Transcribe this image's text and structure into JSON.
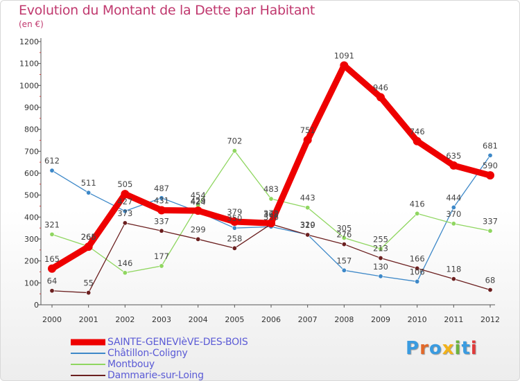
{
  "title": "Evolution du Montant de la Dette par Habitant",
  "subtitle": "(en €)",
  "logo": {
    "text": "Proxiti",
    "colors": [
      "#3a9be0",
      "#e2692a",
      "#3a9be0",
      "#f2b21a",
      "#6cb33f",
      "#3a9be0",
      "#e03a3a"
    ]
  },
  "chart_data": {
    "type": "line",
    "title": "Evolution du Montant de la Dette par Habitant",
    "subtitle": "(en €)",
    "x": [
      "2000",
      "2001",
      "2002",
      "2003",
      "2004",
      "2005",
      "2006",
      "2007",
      "2008",
      "2009",
      "2010",
      "2011",
      "2012"
    ],
    "ylim": [
      0,
      1200
    ],
    "yticks": [
      "0",
      "100",
      "200",
      "300",
      "400",
      "500",
      "600",
      "700",
      "800",
      "900",
      "1000",
      "1100",
      "1200"
    ],
    "grid": false,
    "legend": "bottom-left",
    "series": [
      {
        "name": "SAINTE-GENEVIèVE-DES-BOIS",
        "color": "#ee0000",
        "values": [
          165,
          265,
          505,
          431,
          429,
          379,
          372,
          751,
          1091,
          946,
          746,
          635,
          590
        ]
      },
      {
        "name": "Châtillon-Coligny",
        "color": "#3d88c8",
        "values": [
          612,
          511,
          427,
          487,
          424,
          350,
          356,
          320,
          157,
          130,
          106,
          444,
          681
        ]
      },
      {
        "name": "Montbouy",
        "color": "#8fd660",
        "values": [
          321,
          266,
          146,
          177,
          454,
          702,
          483,
          443,
          305,
          255,
          416,
          370,
          337
        ]
      },
      {
        "name": "Dammarie-sur-Loing",
        "color": "#6b1f1f",
        "values": [
          64,
          55,
          373,
          337,
          299,
          258,
          368,
          319,
          276,
          213,
          166,
          118,
          68
        ]
      }
    ],
    "value_labels": [
      {
        "series": 0,
        "text": [
          "165",
          "265",
          "505",
          "431",
          "429",
          "379",
          "372",
          "751",
          "1091",
          "946",
          "746",
          "635",
          "590"
        ]
      },
      {
        "series": 1,
        "text": [
          "612",
          "511",
          "427",
          "487",
          "424",
          "350",
          "356",
          "320",
          "157",
          "130",
          "106",
          "444",
          "681"
        ]
      },
      {
        "series": 2,
        "text": [
          "321",
          "266",
          "146",
          "177",
          "454",
          "702",
          "483",
          "443",
          "305",
          "255",
          "416",
          "370",
          "337"
        ]
      },
      {
        "series": 3,
        "text": [
          "64",
          "55",
          "373",
          "337",
          "299",
          "258",
          "368",
          "319",
          "276",
          "213",
          "166",
          "118",
          "68"
        ]
      }
    ]
  }
}
